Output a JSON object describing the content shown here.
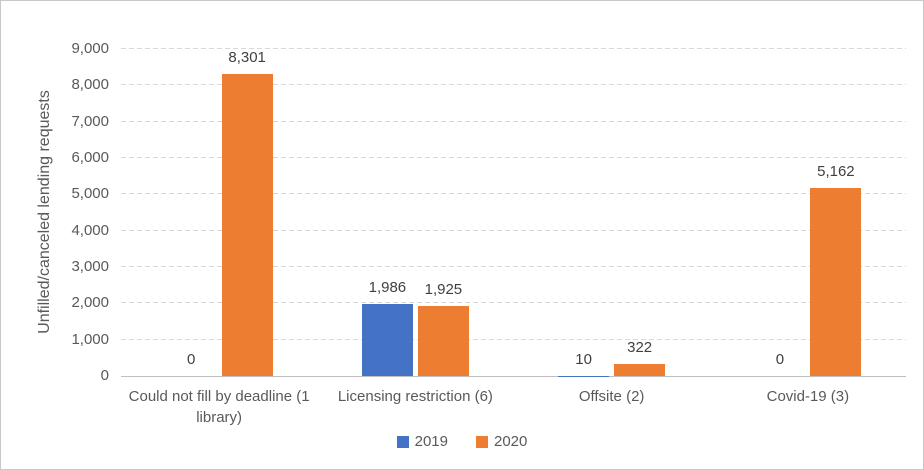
{
  "chart_data": {
    "type": "bar",
    "title": "",
    "categories": [
      "Could not fill by deadline (1 library)",
      "Licensing restriction (6)",
      "Offsite (2)",
      "Covid-19 (3)"
    ],
    "series": [
      {
        "name": "2019",
        "color": "#4472C4",
        "values": [
          0,
          1986,
          10,
          0
        ],
        "labels": [
          "0",
          "1,986",
          "10",
          "0"
        ]
      },
      {
        "name": "2020",
        "color": "#ED7D31",
        "values": [
          8301,
          1925,
          322,
          5162
        ],
        "labels": [
          "8,301",
          "1,925",
          "322",
          "5,162"
        ]
      }
    ],
    "xlabel": "",
    "ylabel": "Unfilled/canceled lending requests",
    "ylim": [
      0,
      9000
    ],
    "ytick_step": 1000,
    "ytick_labels": [
      "0",
      "1,000",
      "2,000",
      "3,000",
      "4,000",
      "5,000",
      "6,000",
      "7,000",
      "8,000",
      "9,000"
    ],
    "grid": "horizontal-dashed",
    "legend_position": "bottom-center"
  },
  "colors": {
    "gridline": "#D9D9D9",
    "axis_line": "#BFBFBF",
    "axis_text": "#595959",
    "data_label_text": "#404040",
    "background": "#FFFFFF",
    "border": "#C8C8C8",
    "series_2019": "#4472C4",
    "series_2020": "#ED7D31"
  }
}
